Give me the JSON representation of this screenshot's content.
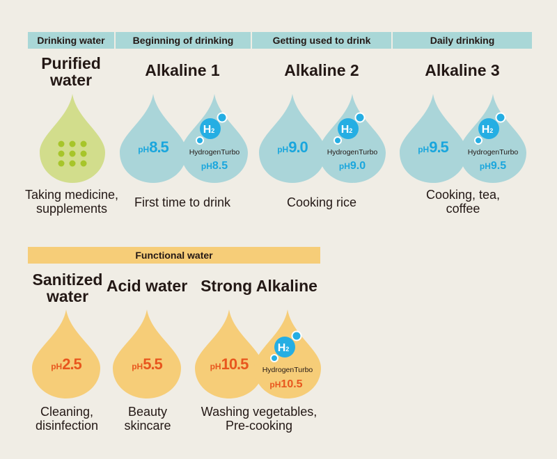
{
  "headers": {
    "drinking_water": "Drinking water",
    "beginning": "Beginning of drinking",
    "getting_used": "Getting used to drink",
    "daily": "Daily drinking",
    "functional": "Functional water"
  },
  "titles": {
    "purified": "Purified water",
    "alk1": "Alkaline 1",
    "alk2": "Alkaline 2",
    "alk3": "Alkaline 3",
    "sanitized": "Sanitized water",
    "acid": "Acid water",
    "strong": "Strong Alkaline"
  },
  "ph_prefix": "pH",
  "hydrogen_label": "HydrogenTurbo",
  "h2_symbol": "H",
  "h2_subscript": "2",
  "ph_values": {
    "alk1": "8.5",
    "alk1_h2": "8.5",
    "alk2": "9.0",
    "alk2_h2": "9.0",
    "alk3": "9.5",
    "alk3_h2": "9.5",
    "sanitized": "2.5",
    "acid": "5.5",
    "strong": "10.5",
    "strong_h2": "10.5"
  },
  "descriptions": {
    "purified": "Taking medicine, supplements",
    "alk1": "First time to drink",
    "alk2": "Cooking rice",
    "alk3": "Cooking, tea, coffee",
    "sanitized": "Cleaning, disinfection",
    "acid": "Beauty skincare",
    "strong": "Washing vegetables, Pre-cooking"
  },
  "colors": {
    "page_bg": "#f0ede5",
    "header_blue": "#a9d7d7",
    "header_yellow": "#f6cd78",
    "drop_blue": "#aad5d9",
    "drop_green": "#d2dd8c",
    "dots_green": "#a7c52a",
    "drop_yellow": "#f6cd78",
    "ph_blue": "#1aa6dd",
    "ph_orange": "#e8571e",
    "h2_circle": "#25aee3"
  }
}
